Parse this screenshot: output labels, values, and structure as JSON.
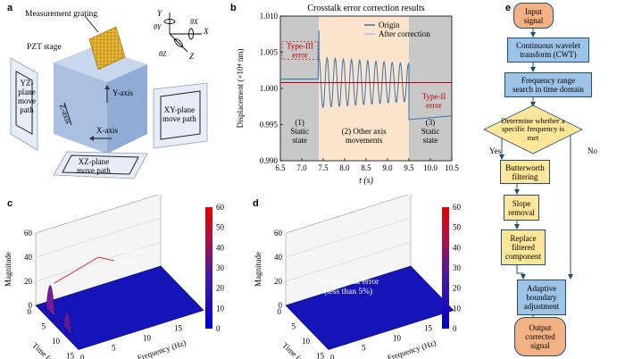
{
  "panel_labels": {
    "a": "a",
    "b": "b",
    "c": "c",
    "d": "d",
    "e": "e"
  },
  "panel_a": {
    "measurement_grating": "Measurement grating",
    "pzt_stage": "PZT stage",
    "y_axis": "Y-axis",
    "z_axis": "Z-axis",
    "x_axis": "X-axis",
    "yz_path": [
      "YZ-",
      "plane",
      "move",
      "path"
    ],
    "xy_path": [
      "XY-plane",
      "move path"
    ],
    "xz_path": [
      "XZ-plane",
      "move path"
    ],
    "coord_Y": "Y",
    "coord_X": "X",
    "coord_Z": "Z",
    "theta_x": "θX",
    "theta_y": "θY",
    "theta_z": "θZ"
  },
  "chart_data": [
    {
      "type": "line",
      "title": "Crosstalk error correction results",
      "xlabel": "t (s)",
      "ylabel": "Displacement (×10⁴ nm)",
      "xlim": [
        6.5,
        10.5
      ],
      "ylim": [
        0.99,
        1.01
      ],
      "xticks": [
        "6.5",
        "7.0",
        "7.5",
        "8.0",
        "8.5",
        "9.0",
        "9.5",
        "10.0",
        "10.5"
      ],
      "yticks": [
        "0.990",
        "0.995",
        "1.000",
        "1.005",
        "1.010"
      ],
      "legend_position": "top-right",
      "series": [
        {
          "name": "Origin",
          "color": "#2e75b6"
        },
        {
          "name": "After correction",
          "color": "#9dc3e6"
        }
      ],
      "regions": [
        {
          "x": [
            6.5,
            7.4
          ],
          "label": [
            "(1)",
            "Static",
            "state"
          ],
          "color": "#c8c8c8"
        },
        {
          "x": [
            7.4,
            9.5
          ],
          "label": [
            "(2) Other axis",
            "movements"
          ],
          "color": "#fbe3cc"
        },
        {
          "x": [
            9.5,
            10.5
          ],
          "label": [
            "(3)",
            "Static",
            "state"
          ],
          "color": "#c8c8c8"
        }
      ],
      "annotations": [
        "Type-III error",
        "Type-II error"
      ],
      "segments": [
        {
          "x": [
            6.5,
            7.4
          ],
          "y": [
            1.0013,
            1.0013
          ]
        },
        {
          "x": [
            9.5,
            10.5
          ],
          "y": [
            0.9962,
            0.9962
          ]
        }
      ],
      "oscillation": {
        "x_start": 7.4,
        "x_end": 9.5,
        "center": 1.0008,
        "amplitude": 0.0035,
        "period": 0.19
      },
      "corrected_level": 1.0008
    },
    {
      "type": "surface",
      "xlabel": "Time (s)",
      "ylabel": "Frequency (Hz)",
      "zlabel": "Magnitude",
      "zticks": [
        "0",
        "20",
        "40",
        "60"
      ],
      "time_ticks": [
        "0",
        "5",
        "10",
        "15"
      ],
      "freq_ticks": [
        "0",
        "5",
        "10",
        "15"
      ],
      "colorbar_ticks": [
        "60",
        "50",
        "40",
        "30",
        "20",
        "10",
        "0"
      ],
      "annotation": [
        "Crosstalk",
        "error"
      ],
      "peaks": [
        {
          "time": 3,
          "freq": 1,
          "magnitude": 40
        },
        {
          "time": 9,
          "freq": 1,
          "magnitude": 25
        }
      ]
    },
    {
      "type": "surface",
      "xlabel": "Time (s)",
      "ylabel": "Frequency (Hz)",
      "zlabel": "Magnitude",
      "zticks": [
        "0",
        "20",
        "40",
        "60"
      ],
      "time_ticks": [
        "0",
        "5",
        "10",
        "15"
      ],
      "freq_ticks": [
        "0",
        "5",
        "10",
        "15"
      ],
      "colorbar_ticks": [
        "60",
        "50",
        "40",
        "30",
        "20",
        "10",
        "0"
      ],
      "annotation": [
        "No crosstalk error",
        "(less than 5%)"
      ]
    }
  ],
  "flowchart": {
    "input": [
      "Input",
      "signal"
    ],
    "cwt": [
      "Continuous wavelet",
      "transform (CWT)"
    ],
    "freq": [
      "Frequency range",
      "search in time domain"
    ],
    "decision": [
      "Determine whether a",
      "specific frequency is",
      "met"
    ],
    "yes": "Yes",
    "no": "No",
    "butter": [
      "Butterworth",
      "filtering"
    ],
    "slope": [
      "Slope",
      "removal"
    ],
    "replace": [
      "Replace",
      "filtered",
      "component"
    ],
    "adaptive": [
      "Adaptive",
      "boundary",
      "adjustment"
    ],
    "output": [
      "Output",
      "corrected",
      "signal"
    ]
  }
}
